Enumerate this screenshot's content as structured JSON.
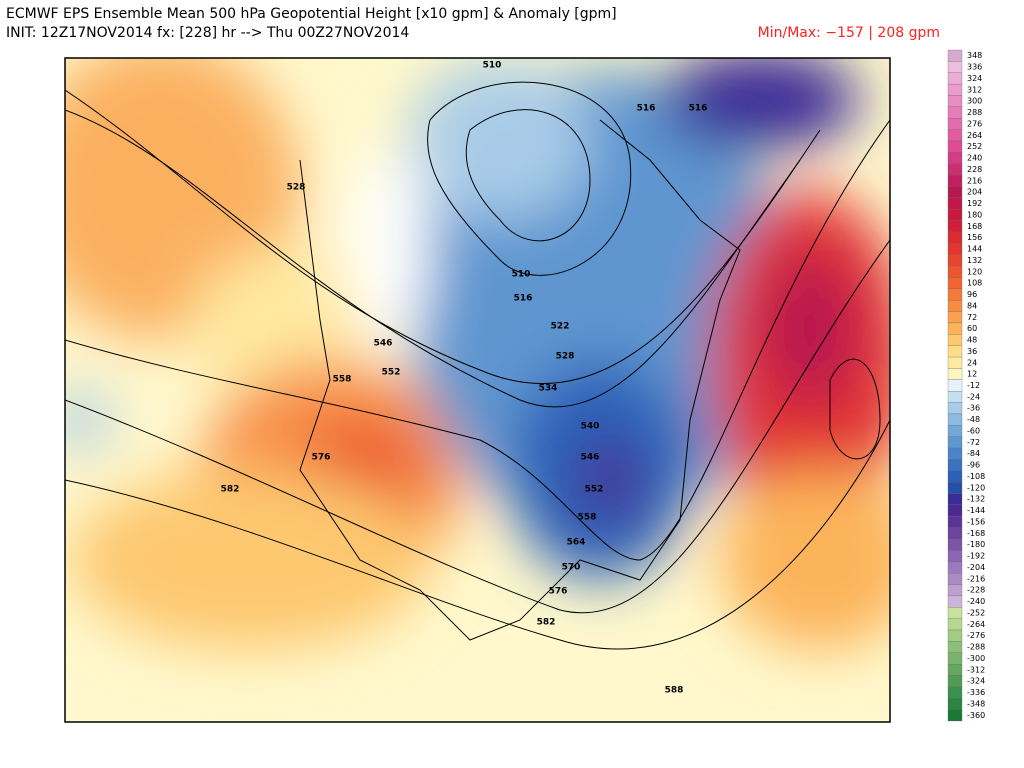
{
  "header": {
    "title": "ECMWF EPS Ensemble Mean 500 hPa Geopotential Height [x10 gpm] & Anomaly [gpm]",
    "init": "INIT: 12Z17NOV2014 fx: [228] hr --> Thu 00Z27NOV2014",
    "minmax": "Min/Max:  −157 |  208 gpm"
  },
  "contour_labels": [
    "510",
    "516",
    "528",
    "546",
    "552",
    "558",
    "576",
    "582",
    "510",
    "516",
    "522",
    "528",
    "534",
    "540",
    "546",
    "552",
    "558",
    "564",
    "570",
    "576",
    "582",
    "588",
    "516"
  ],
  "colorbar": {
    "levels": [
      348,
      336,
      324,
      312,
      300,
      288,
      276,
      264,
      252,
      240,
      228,
      216,
      204,
      192,
      180,
      168,
      156,
      144,
      132,
      120,
      108,
      96,
      84,
      72,
      60,
      48,
      36,
      24,
      12,
      -12,
      -24,
      -36,
      -48,
      -60,
      -72,
      -84,
      -96,
      -108,
      -120,
      -132,
      -144,
      -156,
      -168,
      -180,
      -192,
      -204,
      -216,
      -228,
      -240,
      -252,
      -264,
      -276,
      -288,
      -300,
      -312,
      -324,
      -336,
      -348,
      -360
    ],
    "colors": [
      "#d8a8d0",
      "#eebcdc",
      "#ecacd4",
      "#ea9ccc",
      "#e88cc2",
      "#e67cb8",
      "#e46cae",
      "#e25ca2",
      "#de4c94",
      "#d63c84",
      "#cc2e72",
      "#c02060",
      "#b81850",
      "#c01848",
      "#ca1840",
      "#d41e38",
      "#de2832",
      "#e43430",
      "#e84430",
      "#ec5530",
      "#f06632",
      "#f47a38",
      "#f88c40",
      "#fba04c",
      "#fcb45a",
      "#fdc870",
      "#ffdc8a",
      "#ffe9a0",
      "#fff5c0",
      "#e8f2fa",
      "#c6dff0",
      "#a8cce8",
      "#8cbae0",
      "#74a8d8",
      "#5e96d0",
      "#4a84c8",
      "#3a72c0",
      "#2c60b8",
      "#2450a8",
      "#3a2c96",
      "#4c2890",
      "#5c3496",
      "#6c449e",
      "#7c54a8",
      "#8c66b2",
      "#9c78bc",
      "#ac8ac6",
      "#bca0d0",
      "#ccb4da",
      "#c8e0a0",
      "#b4d890",
      "#a0cc84",
      "#8cc078",
      "#78b46c",
      "#64a860",
      "#509c56",
      "#3c904c",
      "#2a8442",
      "#1a7838"
    ]
  }
}
